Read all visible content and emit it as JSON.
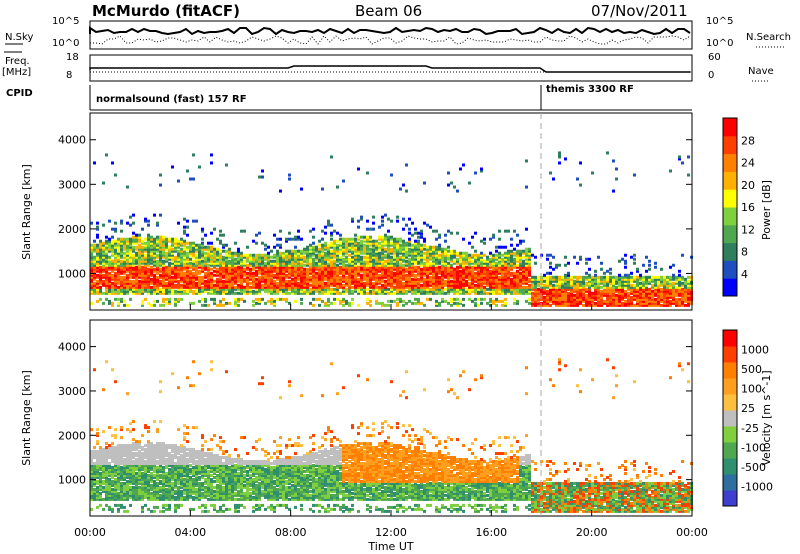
{
  "header": {
    "radar": "McMurdo (fitACF)",
    "beam": "Beam 06",
    "date": "07/Nov/2011"
  },
  "summary": {
    "nsky_label": "N.Sky",
    "nsearch_label": "N.Search",
    "nsky_ticks": [
      "10^5",
      "10^0"
    ],
    "nsearch_ticks": [
      "10^5",
      "10^0"
    ],
    "freq_label_1": "Freq.",
    "freq_label_2": "[MHz]",
    "freq_ticks": [
      "18",
      "8"
    ],
    "nave_label": "Nave",
    "nave_ticks": [
      "60",
      "0"
    ],
    "cpid_label": "CPID",
    "cpid_segments": [
      {
        "name": "normalsound (fast) 157 RF",
        "start_hour": 0
      },
      {
        "name": "themis 3300 RF",
        "start_hour": 18
      }
    ]
  },
  "chart_data": [
    {
      "type": "heatmap",
      "panel": "power",
      "ylabel": "Slant Range [km]",
      "ylim": [
        180,
        4600
      ],
      "yticks": [
        "4000",
        "3000",
        "2000",
        "1000"
      ],
      "xlim": [
        0,
        24
      ],
      "colorbar": {
        "label": "Power [dB]",
        "ticks": [
          "28",
          "24",
          "20",
          "16",
          "12",
          "8",
          "4"
        ],
        "colors": [
          "#0000ff",
          "#1f4fbf",
          "#2f7f5f",
          "#4fa84f",
          "#7fd03f",
          "#ffff00",
          "#ffb000",
          "#ff7f00",
          "#ff3f00",
          "#ff0000"
        ]
      }
    },
    {
      "type": "heatmap",
      "panel": "velocity",
      "ylabel": "Slant Range [km]",
      "ylim": [
        180,
        4600
      ],
      "yticks": [
        "4000",
        "3000",
        "2000",
        "1000"
      ],
      "xlim": [
        0,
        24
      ],
      "xlabel": "Time UT",
      "xticks": [
        "00:00",
        "04:00",
        "08:00",
        "12:00",
        "16:00",
        "20:00",
        "00:00"
      ],
      "colorbar": {
        "label": "Velocity [m s^-1]",
        "ticks": [
          "1000",
          "500",
          "100",
          "25",
          "-25",
          "-100",
          "-500",
          "-1000"
        ],
        "colors": [
          "#3f3fcf",
          "#2f6f9f",
          "#2f8f6f",
          "#4fa84f",
          "#7fcf3f",
          "#bfbfbf",
          "#ffbf3f",
          "#ff9f1f",
          "#ff7f00",
          "#ff3f00",
          "#ff0000"
        ]
      }
    }
  ]
}
